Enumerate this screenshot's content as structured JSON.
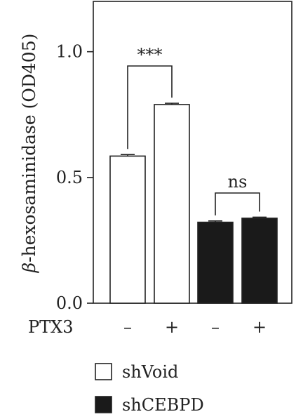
{
  "chart_data": {
    "type": "bar",
    "title": "",
    "ylabel": "β-hexosaminidase (OD405)",
    "ylabel_greek": "β",
    "ylabel_rest": "-hexosaminidase (OD405)",
    "xlabel": "PTX3",
    "ylim": [
      0,
      1.2
    ],
    "yticks": [
      {
        "value": 0.0,
        "label": "0.0"
      },
      {
        "value": 0.5,
        "label": "0.5"
      },
      {
        "value": 1.0,
        "label": "1.0"
      }
    ],
    "categories": [
      "–",
      "+",
      "–",
      "+"
    ],
    "bars": [
      {
        "group": "shVoid",
        "ptx3": "–",
        "value": 0.585,
        "error": 0.006,
        "fill": "#ffffff"
      },
      {
        "group": "shVoid",
        "ptx3": "+",
        "value": 0.79,
        "error": 0.005,
        "fill": "#ffffff"
      },
      {
        "group": "shCEBPD",
        "ptx3": "–",
        "value": 0.322,
        "error": 0.005,
        "fill": "#1a1a1a"
      },
      {
        "group": "shCEBPD",
        "ptx3": "+",
        "value": 0.338,
        "error": 0.004,
        "fill": "#1a1a1a"
      }
    ],
    "annotations": [
      {
        "label": "***",
        "bars": [
          0,
          1
        ]
      },
      {
        "label": "ns",
        "bars": [
          2,
          3
        ]
      }
    ],
    "legend": {
      "placement": "bottom",
      "entries": [
        {
          "label": "shVoid",
          "fill": "#ffffff"
        },
        {
          "label": "shCEBPD",
          "fill": "#1a1a1a"
        }
      ]
    }
  }
}
